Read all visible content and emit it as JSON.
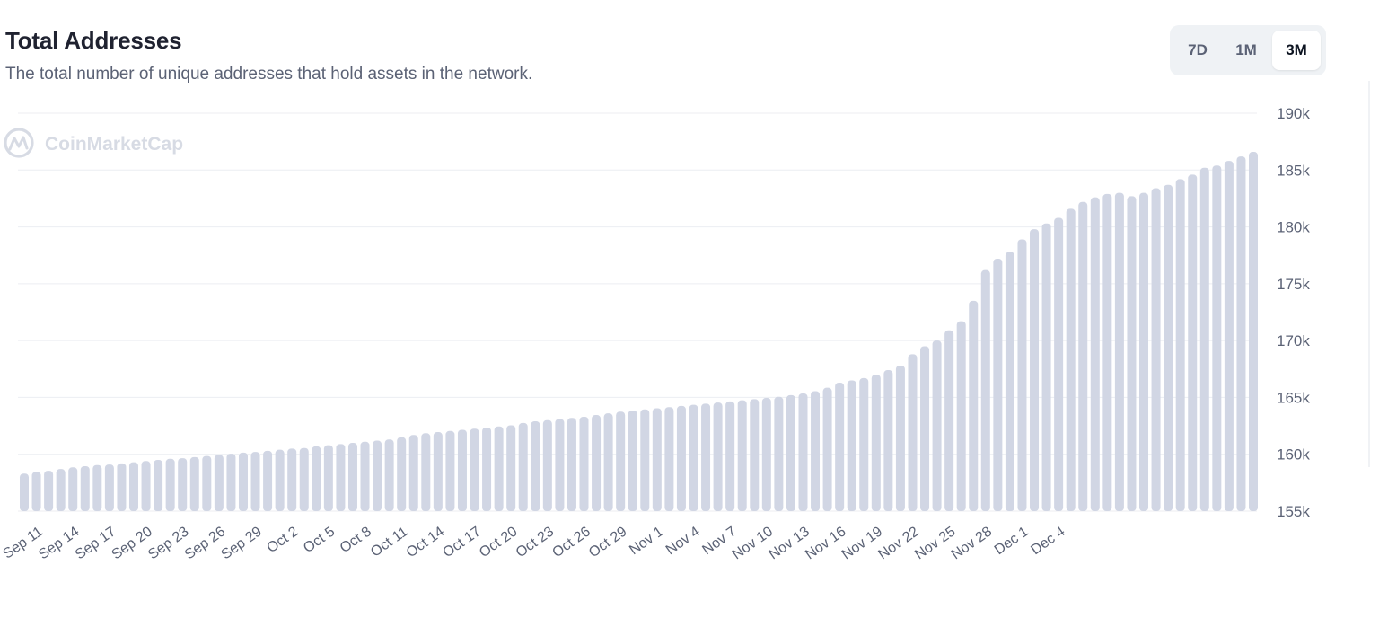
{
  "header": {
    "title": "Total Addresses",
    "subtitle": "The total number of unique addresses that hold assets in the network."
  },
  "range_selector": {
    "options": [
      "7D",
      "1M",
      "3M"
    ],
    "selected": "3M"
  },
  "watermark": {
    "text": "CoinMarketCap",
    "icon": "coinmarketcap-logo-icon"
  },
  "colors": {
    "bar": "#d1d6e4",
    "grid": "#eceef2",
    "tick": "#5b6275",
    "title": "#1f2230"
  },
  "chart_data": {
    "type": "bar",
    "title": "Total Addresses",
    "x_tick_labels": [
      "Sep 11",
      "Sep 14",
      "Sep 17",
      "Sep 20",
      "Sep 23",
      "Sep 26",
      "Sep 29",
      "Oct 2",
      "Oct 5",
      "Oct 8",
      "Oct 11",
      "Oct 14",
      "Oct 17",
      "Oct 20",
      "Oct 23",
      "Oct 26",
      "Oct 29",
      "Nov 1",
      "Nov 4",
      "Nov 7",
      "Nov 10",
      "Nov 13",
      "Nov 16",
      "Nov 19",
      "Nov 22",
      "Nov 25",
      "Nov 28",
      "Dec 1",
      "Dec 4"
    ],
    "x_tick_every": 3,
    "x_tick_first_index": 1,
    "y_tick_labels": [
      "155k",
      "160k",
      "165k",
      "170k",
      "175k",
      "180k",
      "185k",
      "190k"
    ],
    "y_ticks": [
      155000,
      160000,
      165000,
      170000,
      175000,
      180000,
      185000,
      190000
    ],
    "ylim": [
      155000,
      190000
    ],
    "grid": true,
    "values": [
      158300,
      158450,
      158550,
      158700,
      158850,
      158950,
      159050,
      159100,
      159200,
      159300,
      159400,
      159500,
      159600,
      159650,
      159750,
      159850,
      159950,
      160050,
      160150,
      160200,
      160300,
      160400,
      160500,
      160550,
      160700,
      160800,
      160900,
      161000,
      161100,
      161200,
      161300,
      161500,
      161700,
      161850,
      161950,
      162050,
      162150,
      162250,
      162350,
      162450,
      162550,
      162750,
      162900,
      163000,
      163100,
      163200,
      163300,
      163450,
      163600,
      163750,
      163850,
      163950,
      164050,
      164150,
      164250,
      164350,
      164450,
      164550,
      164650,
      164750,
      164850,
      164950,
      165050,
      165200,
      165350,
      165550,
      165850,
      166300,
      166500,
      166700,
      167000,
      167400,
      167800,
      168800,
      169500,
      170000,
      170900,
      171700,
      173500,
      176200,
      177200,
      177800,
      178900,
      179800,
      180300,
      180800,
      181600,
      182200,
      182600,
      182900,
      183000,
      182700,
      183000,
      183400,
      183700,
      184200,
      184600,
      185200,
      185400,
      185800,
      186200,
      186600
    ]
  }
}
